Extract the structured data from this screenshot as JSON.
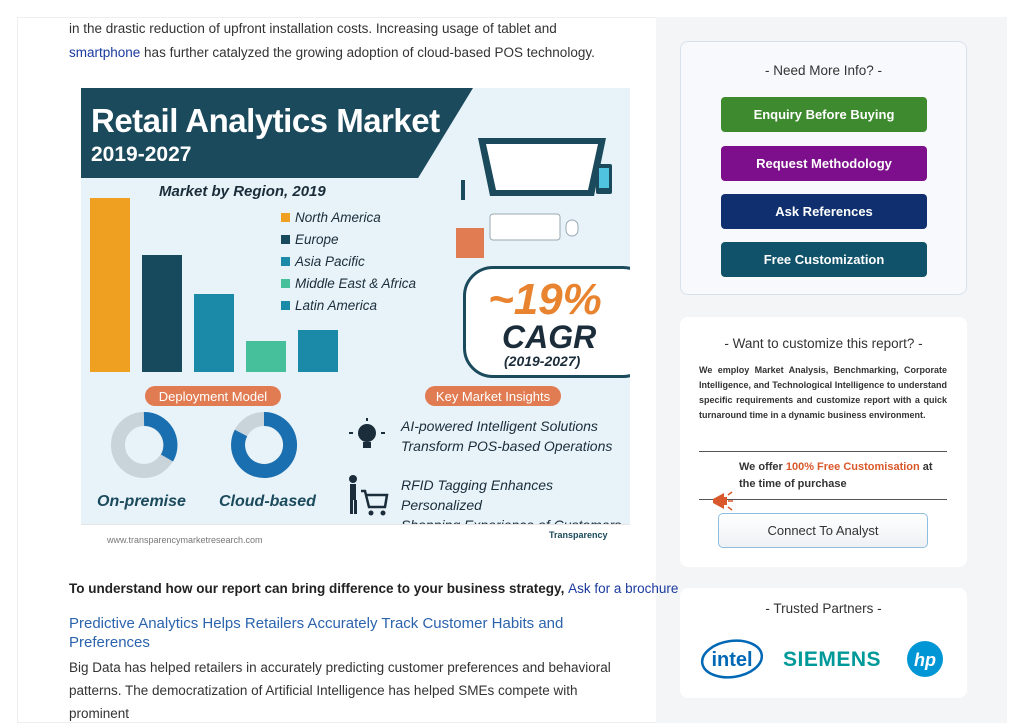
{
  "article": {
    "intro_line1": "in the drastic reduction of upfront installation costs. Increasing usage of tablet and",
    "intro_link": "smartphone",
    "intro_line2": " has further catalyzed the growing adoption of cloud-based POS technology.",
    "cta_text": "To understand how our report can bring difference to your business strategy, ",
    "cta_link": "Ask for a brochure",
    "section_title": "Predictive Analytics Helps Retailers Accurately Track Customer Habits and Preferences",
    "body_text": "Big Data has helped retailers in accurately predicting customer preferences and behavioral patterns. The democratization of Artificial Intelligence has helped SMEs compete with prominent"
  },
  "infographic": {
    "title": "Retail Analytics Market",
    "years": "2019-2027",
    "subtitle": "Market by Region, 2019",
    "legend": [
      {
        "label": "North America",
        "color": "#f0a020"
      },
      {
        "label": "Europe",
        "color": "#174a5c"
      },
      {
        "label": "Asia Pacific",
        "color": "#1a8aa8"
      },
      {
        "label": "Middle East & Africa",
        "color": "#45c09a"
      },
      {
        "label": "Latin America",
        "color": "#1a8aa8"
      }
    ],
    "bar_share": [
      1.0,
      0.67,
      0.45,
      0.18,
      0.24
    ],
    "cagr_value": "~19%",
    "cagr_label": "CAGR",
    "cagr_years": "(2019-2027)",
    "deployment_pill": "Deployment Model",
    "insights_pill": "Key Market Insights",
    "donut_1": "On-premise",
    "donut_2": "Cloud-based",
    "insight_1_line1": "AI-powered Intelligent Solutions",
    "insight_1_line2": "Transform POS-based Operations",
    "insight_2_line1": "RFID Tagging Enhances Personalized",
    "insight_2_line2": "Shopping Experience of Customers",
    "url": "www.transparencymarketresearch.com",
    "brand": "Transparency"
  },
  "sidebar": {
    "info_title": "- Need More Info? -",
    "buttons": [
      {
        "label": "Enquiry Before Buying",
        "color": "#3e8a2e"
      },
      {
        "label": "Request Methodology",
        "color": "#7d0f8c"
      },
      {
        "label": "Ask References",
        "color": "#0f2f6e"
      },
      {
        "label": "Free Customization",
        "color": "#0f526a"
      }
    ],
    "customize_title": "- Want to customize this report? -",
    "customize_text": "We employ Market Analysis, Benchmarking, Corporate Intelligence, and Technological Intelligence to understand specific requirements and customize report with a quick turnaround time in a dynamic business environment.",
    "offer_prefix": "We offer ",
    "offer_highlight": "100% Free Customisation",
    "offer_suffix": " at the time of purchase",
    "connect_label": "Connect To Analyst",
    "partners_title": "- Trusted Partners -",
    "partners": [
      "intel",
      "SIEMENS",
      "hp"
    ]
  }
}
